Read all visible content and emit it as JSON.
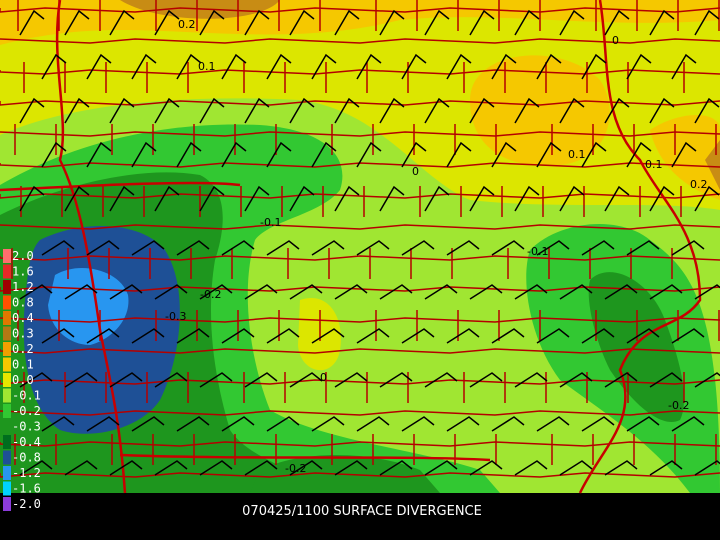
{
  "caption": "070425/1100 SURFACE DIVERGENCE",
  "legend": [
    {
      "label": "2.0",
      "color": "#ff6e6e"
    },
    {
      "label": "1.6",
      "color": "#e62828"
    },
    {
      "label": "1.2",
      "color": "#a00000"
    },
    {
      "label": "0.8",
      "color": "#ff5000"
    },
    {
      "label": "0.4",
      "color": "#e07800"
    },
    {
      "label": "0.3",
      "color": "#b47814"
    },
    {
      "label": "0.2",
      "color": "#f0a000"
    },
    {
      "label": "0.1",
      "color": "#f5c800"
    },
    {
      "label": "0.0",
      "color": "#e6e600"
    },
    {
      "label": "-0.1",
      "color": "#a0e632"
    },
    {
      "label": "-0.2",
      "color": "#32c832"
    },
    {
      "label": "-0.3",
      "color": "#1e961e"
    },
    {
      "label": "-0.4",
      "color": "#006e1e"
    },
    {
      "label": "-0.8",
      "color": "#1e5096"
    },
    {
      "label": "-1.2",
      "color": "#2896f0"
    },
    {
      "label": "-1.6",
      "color": "#00d2ff"
    },
    {
      "label": "-2.0",
      "color": "#8c3cdc"
    }
  ],
  "contour_labels": [
    "0.2",
    "0.1",
    "0",
    "0.1",
    "0.1",
    "0.2",
    "0",
    "-0.1",
    "-0.1",
    "-0.2",
    "-0.3",
    "0",
    "-0.2",
    "-0.2"
  ]
}
